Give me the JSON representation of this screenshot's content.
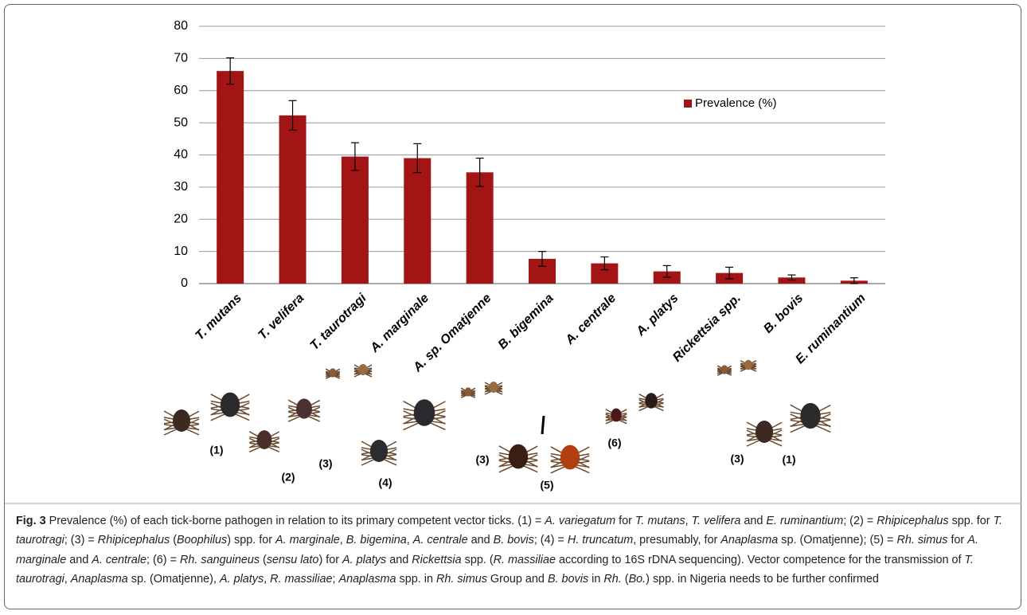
{
  "chart_data": {
    "type": "bar",
    "categories": [
      "T. mutans",
      "T. velifera",
      "T. taurotragi",
      "A. marginale",
      "A. sp. Omatjenne",
      "B. bigemina",
      "A. centrale",
      "A. platys",
      "Rickettsia spp.",
      "B. bovis",
      "E. ruminantium"
    ],
    "series": [
      {
        "name": "Prevalence (%)",
        "color": "#a31515",
        "values": [
          66.1,
          52.3,
          39.5,
          39.0,
          34.6,
          7.7,
          6.3,
          3.8,
          3.3,
          1.9,
          0.9
        ],
        "errors": [
          4.1,
          4.6,
          4.3,
          4.5,
          4.4,
          2.3,
          2.0,
          1.8,
          1.8,
          0.8,
          0.9
        ]
      }
    ],
    "ylim": [
      0,
      80
    ],
    "yticks": [
      0,
      10,
      20,
      30,
      40,
      50,
      60,
      70,
      80
    ],
    "grid": true,
    "legend": "upper-right"
  },
  "vector_labels": [
    "(1)",
    "(2)",
    "(3)",
    "(4)",
    "(3)",
    "(5)",
    "(6)",
    "(3)",
    "(1)"
  ],
  "caption": {
    "runs": [
      {
        "bold": "Fig. 3"
      },
      " Prevalence (%) of each tick-borne pathogen in relation to its primary competent vector ticks. (1) = ",
      {
        "italic": "A. variegatum"
      },
      " for ",
      {
        "italic": "T. mutans"
      },
      ", ",
      {
        "italic": "T. velifera"
      },
      " and ",
      {
        "italic": "E. ruminantium"
      },
      "; (2) = ",
      {
        "italic": "Rhipicephalus"
      },
      " spp. for ",
      {
        "italic": "T. taurotragi"
      },
      "; (3) = ",
      {
        "italic": "Rhipicephalus"
      },
      " (",
      {
        "italic": "Boophilus"
      },
      ") spp. for ",
      {
        "italic": "A. marginale"
      },
      ", ",
      {
        "italic": "B. bigemina"
      },
      ", ",
      {
        "italic": "A. centrale"
      },
      " and ",
      {
        "italic": "B. bovis"
      },
      "; (4) = ",
      {
        "italic": "H. truncatum"
      },
      ", presumably, for ",
      {
        "italic": "Anaplasma"
      },
      " sp. (Omatjenne); (5) = ",
      {
        "italic": "Rh. simus"
      },
      " for ",
      {
        "italic": "A. marginale"
      },
      " and ",
      {
        "italic": "A. centrale"
      },
      "; (6) = ",
      {
        "italic": "Rh. sanguineus"
      },
      " (",
      {
        "italic": "sensu lato"
      },
      ") for ",
      {
        "italic": "A. platys"
      },
      " and ",
      {
        "italic": "Rickettsia"
      },
      " spp. (",
      {
        "italic": "R. massiliae"
      },
      " according to 16S rDNA sequencing). Vector competence for the transmission of ",
      {
        "italic": "T. taurotragi"
      },
      ", ",
      {
        "italic": "Anaplasma"
      },
      " sp. (Omatjenne), ",
      {
        "italic": "A. platys"
      },
      ", ",
      {
        "italic": "R. massiliae"
      },
      "; ",
      {
        "italic": "Anaplasma"
      },
      " spp. in ",
      {
        "italic": "Rh. simus"
      },
      " Group and ",
      {
        "italic": "B. bovis"
      },
      " in ",
      {
        "italic": "Rh."
      },
      " (",
      {
        "italic": "Bo."
      },
      ") spp. in Nigeria needs to be further confirmed"
    ]
  }
}
